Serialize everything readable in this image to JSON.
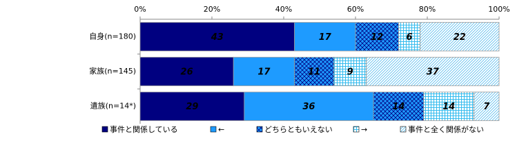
{
  "chart_data": {
    "type": "bar",
    "orientation": "horizontal",
    "stacked": true,
    "categories": [
      "自身(n=180)",
      "家族(n=145)",
      "遺族(n=14*)"
    ],
    "series": [
      {
        "name": "事件と関係している",
        "color": "#000080",
        "pattern": "solid",
        "values": [
          43,
          26,
          29
        ]
      },
      {
        "name": "←",
        "color": "#1e9bff",
        "pattern": "solid",
        "values": [
          17,
          17,
          36
        ]
      },
      {
        "name": "どちらともいえない",
        "color": "#1e9bff",
        "pattern": "crosshatch",
        "values": [
          12,
          11,
          14
        ]
      },
      {
        "name": "→",
        "color": "#33ccff",
        "pattern": "grid",
        "values": [
          6,
          9,
          14
        ]
      },
      {
        "name": "事件と全く関係がない",
        "color": "#66ccff",
        "pattern": "diagonal",
        "values": [
          22,
          37,
          7
        ]
      }
    ],
    "xlim": [
      0,
      100
    ],
    "xticks": [
      {
        "value": 0,
        "label": "0%"
      },
      {
        "value": 20,
        "label": "20%"
      },
      {
        "value": 40,
        "label": "40%"
      },
      {
        "value": 60,
        "label": "60%"
      },
      {
        "value": 80,
        "label": "80%"
      },
      {
        "value": 100,
        "label": "100%"
      }
    ],
    "legend": "bottom"
  }
}
